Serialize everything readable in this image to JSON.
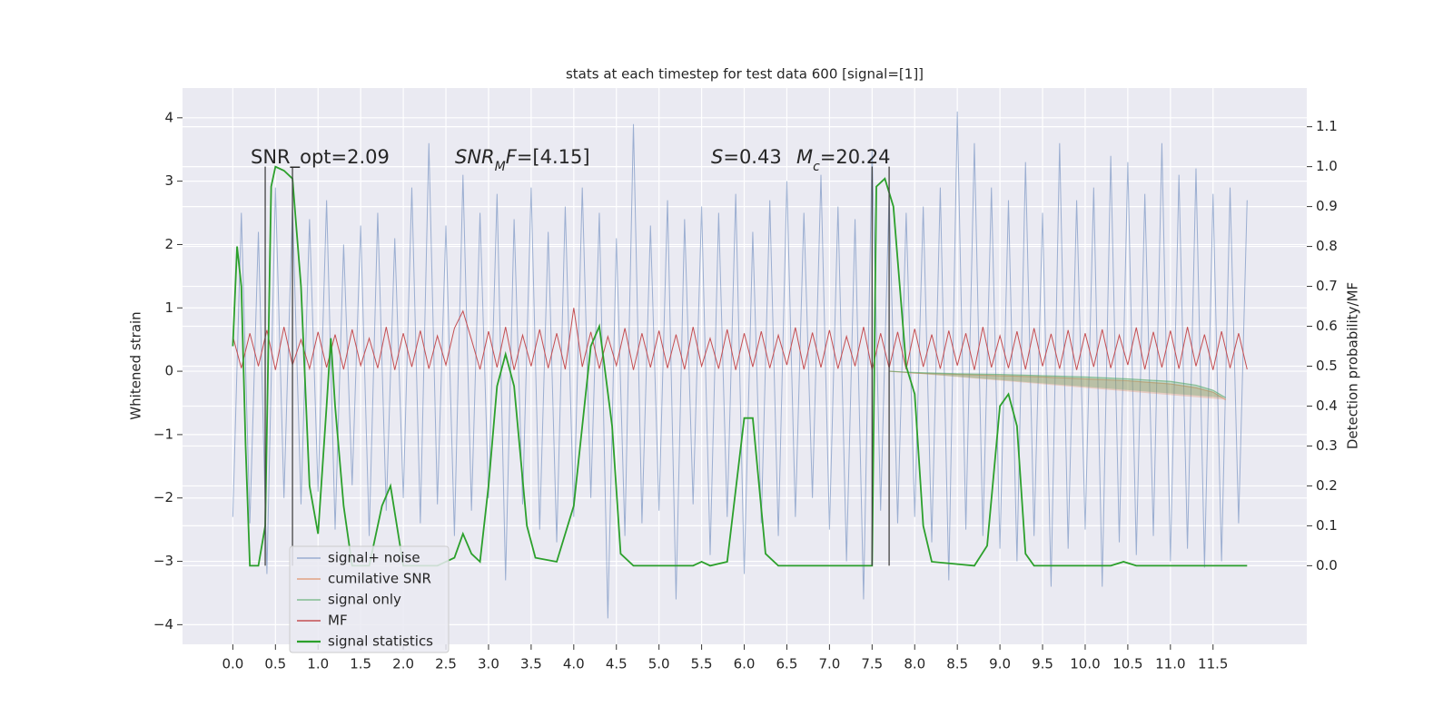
{
  "chart_data": {
    "type": "line",
    "title": "stats at each timestep for test data 600 [signal=[1]]",
    "ylabel": "Whitened strain",
    "y2label": "Detection probability/MF",
    "xlim": [
      -0.59,
      12.6
    ],
    "ylim": [
      -4.31,
      4.47
    ],
    "y2lim": [
      -0.197,
      1.197
    ],
    "xticks": [
      {
        "value": 0,
        "label": "0.0"
      },
      {
        "value": 0.5,
        "label": "0.5"
      },
      {
        "value": 1,
        "label": "1.0"
      },
      {
        "value": 1.5,
        "label": "1.5"
      },
      {
        "value": 2,
        "label": "2.0"
      },
      {
        "value": 2.5,
        "label": "2.5"
      },
      {
        "value": 3,
        "label": "3.0"
      },
      {
        "value": 3.5,
        "label": "3.5"
      },
      {
        "value": 4,
        "label": "4.0"
      },
      {
        "value": 4.5,
        "label": "4.5"
      },
      {
        "value": 5,
        "label": "5.0"
      },
      {
        "value": 5.5,
        "label": "5.5"
      },
      {
        "value": 6,
        "label": "6.0"
      },
      {
        "value": 6.5,
        "label": "6.5"
      },
      {
        "value": 7,
        "label": "7.0"
      },
      {
        "value": 7.5,
        "label": "7.5"
      },
      {
        "value": 8,
        "label": "8.0"
      },
      {
        "value": 8.5,
        "label": "8.5"
      },
      {
        "value": 9,
        "label": "9.0"
      },
      {
        "value": 9.5,
        "label": "9.5"
      },
      {
        "value": 10,
        "label": "10.0"
      },
      {
        "value": 10.5,
        "label": "10.5"
      },
      {
        "value": 11,
        "label": "11.0"
      },
      {
        "value": 11.5,
        "label": "11.5"
      }
    ],
    "yticks": [
      {
        "value": -4,
        "label": "−4"
      },
      {
        "value": -3,
        "label": "−3"
      },
      {
        "value": -2,
        "label": "−2"
      },
      {
        "value": -1,
        "label": "−1"
      },
      0,
      1,
      2,
      3,
      4
    ],
    "y2ticks": [
      {
        "value": 0,
        "label": "0.0"
      },
      {
        "value": 0.1,
        "label": "0.1"
      },
      {
        "value": 0.2,
        "label": "0.2"
      },
      {
        "value": 0.3,
        "label": "0.3"
      },
      {
        "value": 0.4,
        "label": "0.4"
      },
      {
        "value": 0.5,
        "label": "0.5"
      },
      {
        "value": 0.6,
        "label": "0.6"
      },
      {
        "value": 0.7,
        "label": "0.7"
      },
      {
        "value": 0.8,
        "label": "0.8"
      },
      {
        "value": 0.9,
        "label": "0.9"
      },
      {
        "value": 1,
        "label": "1.0"
      },
      {
        "value": 1.1,
        "label": "1.1"
      }
    ],
    "grid": true,
    "legend_loc": "lower left",
    "x": [
      0,
      0.1,
      0.2,
      0.3,
      0.4,
      0.5,
      0.6,
      0.7,
      0.8,
      0.9,
      1,
      1.1,
      1.2,
      1.3,
      1.4,
      1.5,
      1.6,
      1.7,
      1.8,
      1.9,
      2,
      2.1,
      2.2,
      2.3,
      2.4,
      2.5,
      2.6,
      2.7,
      2.8,
      2.9,
      3,
      3.1,
      3.2,
      3.3,
      3.4,
      3.5,
      3.6,
      3.7,
      3.8,
      3.9,
      4,
      4.1,
      4.2,
      4.3,
      4.4,
      4.5,
      4.6,
      4.7,
      4.8,
      4.9,
      5,
      5.1,
      5.2,
      5.3,
      5.4,
      5.5,
      5.6,
      5.7,
      5.8,
      5.9,
      6,
      6.1,
      6.2,
      6.3,
      6.4,
      6.5,
      6.6,
      6.7,
      6.8,
      6.9,
      7,
      7.1,
      7.2,
      7.3,
      7.4,
      7.5,
      7.6,
      7.7,
      7.8,
      7.9,
      8,
      8.1,
      8.2,
      8.3,
      8.4,
      8.5,
      8.6,
      8.7,
      8.8,
      8.9,
      9,
      9.1,
      9.2,
      9.3,
      9.4,
      9.5,
      9.6,
      9.7,
      9.8,
      9.9,
      10,
      10.1,
      10.2,
      10.3,
      10.4,
      10.5,
      10.6,
      10.7,
      10.8,
      10.9,
      11,
      11.1,
      11.2,
      11.3,
      11.4,
      11.5,
      11.6,
      11.7,
      11.8,
      11.9
    ],
    "series": [
      {
        "name": "signal+ noise",
        "color": "#4c72b0",
        "values": [
          -2.3,
          2.5,
          -2.4,
          2.2,
          -3.2,
          2.9,
          -2.0,
          2.6,
          -2.1,
          2.4,
          -1.9,
          2.7,
          -2.5,
          2.0,
          -1.8,
          2.3,
          -2.6,
          2.5,
          -2.2,
          2.1,
          -2.0,
          2.9,
          -2.4,
          3.6,
          -2.1,
          2.3,
          -2.6,
          3.1,
          -2.2,
          2.5,
          -2.0,
          2.8,
          -3.3,
          2.4,
          -2.1,
          2.9,
          -2.5,
          2.2,
          -2.7,
          2.6,
          -2.3,
          2.9,
          -2.0,
          2.5,
          -3.9,
          2.1,
          -2.6,
          3.9,
          -2.4,
          2.3,
          -2.2,
          2.7,
          -3.6,
          2.4,
          -2.1,
          2.6,
          -2.9,
          2.5,
          -2.3,
          2.8,
          -3.2,
          2.2,
          -2.4,
          2.7,
          -2.6,
          3.0,
          -2.3,
          2.5,
          -2.0,
          3.1,
          -2.5,
          2.6,
          -3.0,
          2.4,
          -3.6,
          3.5,
          -2.2,
          2.8,
          -2.4,
          2.5,
          -2.3,
          2.6,
          -2.7,
          2.9,
          -3.3,
          4.1,
          -2.5,
          3.6,
          -2.6,
          2.9,
          -2.8,
          2.7,
          -3.0,
          3.3,
          -2.6,
          2.5,
          -3.4,
          3.6,
          -2.8,
          2.7,
          -2.5,
          2.9,
          -3.4,
          3.4,
          -2.7,
          3.3,
          -2.9,
          2.8,
          -2.6,
          3.6,
          -3.0,
          3.1,
          -2.8,
          3.2,
          -3.1,
          2.8,
          -3.0,
          2.9,
          -2.4,
          2.7
        ]
      },
      {
        "name": "cumilative SNR",
        "color": "#dd8452",
        "x": [
          7.7,
          8.0,
          8.5,
          9.0,
          9.5,
          10.0,
          10.5,
          11.0,
          11.3,
          11.5,
          11.65
        ],
        "values": [
          0,
          -0.03,
          -0.05,
          -0.07,
          -0.09,
          -0.12,
          -0.15,
          -0.2,
          -0.26,
          -0.33,
          -0.45
        ]
      },
      {
        "name": "signal only",
        "color": "#55a868",
        "x": [
          7.7,
          8.0,
          8.5,
          9.0,
          9.5,
          10.0,
          10.5,
          11.0,
          11.3,
          11.5,
          11.65
        ],
        "values": [
          0,
          -0.02,
          -0.04,
          -0.05,
          -0.07,
          -0.09,
          -0.12,
          -0.16,
          -0.22,
          -0.3,
          -0.42
        ]
      },
      {
        "name": "MF",
        "color": "#c44e52",
        "values": [
          0.55,
          0.05,
          0.6,
          0.08,
          0.65,
          0.02,
          0.7,
          0.1,
          0.5,
          0.04,
          0.62,
          0.06,
          0.58,
          0.03,
          0.66,
          0.09,
          0.52,
          0.05,
          0.7,
          0.02,
          0.6,
          0.07,
          0.64,
          0.04,
          0.56,
          0.1,
          0.68,
          0.95,
          0.5,
          0.03,
          0.63,
          0.06,
          0.7,
          0.02,
          0.57,
          0.08,
          0.66,
          0.05,
          0.6,
          0.03,
          1.0,
          0.07,
          0.62,
          0.04,
          0.55,
          0.09,
          0.68,
          0.02,
          0.6,
          0.06,
          0.64,
          0.05,
          0.58,
          0.03,
          0.7,
          0.08,
          0.52,
          0.04,
          0.66,
          0.02,
          0.6,
          0.07,
          0.63,
          0.05,
          0.57,
          0.1,
          0.69,
          0.03,
          0.61,
          0.06,
          0.65,
          0.04,
          0.55,
          0.08,
          0.7,
          0.02,
          0.6,
          0.05,
          0.62,
          0.03,
          0.67,
          0.07,
          0.58,
          0.04,
          0.64,
          0.09,
          0.6,
          0.02,
          0.7,
          0.06,
          0.56,
          0.05,
          0.63,
          0.03,
          0.68,
          0.08,
          0.59,
          0.04,
          0.65,
          0.02,
          0.6,
          0.07,
          0.66,
          0.05,
          0.57,
          0.1,
          0.69,
          0.03,
          0.62,
          0.06,
          0.64,
          0.04,
          0.7,
          0.08,
          0.58,
          0.02,
          0.63,
          0.05,
          0.6,
          0.03
        ]
      },
      {
        "name": "signal statistics",
        "color": "#2ca02c",
        "axis": "y2",
        "x": [
          0,
          0.05,
          0.1,
          0.15,
          0.2,
          0.3,
          0.38,
          0.45,
          0.5,
          0.6,
          0.7,
          0.8,
          0.9,
          1.0,
          1.1,
          1.15,
          1.2,
          1.3,
          1.4,
          1.6,
          1.75,
          1.85,
          2.0,
          2.4,
          2.6,
          2.7,
          2.8,
          2.9,
          3.0,
          3.1,
          3.2,
          3.3,
          3.45,
          3.55,
          3.8,
          4.0,
          4.2,
          4.3,
          4.45,
          4.55,
          4.7,
          5.4,
          5.5,
          5.6,
          5.8,
          6.0,
          6.1,
          6.25,
          6.4,
          7.5,
          7.55,
          7.65,
          7.75,
          7.9,
          8.0,
          8.1,
          8.2,
          8.7,
          8.85,
          9.0,
          9.1,
          9.2,
          9.3,
          9.4,
          10.3,
          10.45,
          10.6,
          11.9
        ],
        "values": [
          0.55,
          0.8,
          0.7,
          0.3,
          0,
          0,
          0.1,
          0.95,
          1.0,
          0.99,
          0.97,
          0.7,
          0.2,
          0.08,
          0.4,
          0.57,
          0.4,
          0.15,
          0,
          0,
          0.15,
          0.2,
          0,
          0,
          0.02,
          0.08,
          0.03,
          0.01,
          0.2,
          0.45,
          0.53,
          0.45,
          0.1,
          0.02,
          0.01,
          0.15,
          0.55,
          0.6,
          0.35,
          0.03,
          0,
          0,
          0.01,
          0,
          0.01,
          0.37,
          0.37,
          0.03,
          0,
          0,
          0.95,
          0.97,
          0.9,
          0.5,
          0.43,
          0.1,
          0.01,
          0,
          0.05,
          0.4,
          0.43,
          0.35,
          0.03,
          0,
          0,
          0.01,
          0,
          0
        ]
      }
    ],
    "vlines": {
      "x": [
        0.38,
        0.7,
        7.5,
        7.7
      ],
      "ymin": 0,
      "ymax": 1,
      "axis": "y2",
      "color": "#444444"
    },
    "annotations": [
      [
        {
          "text": "SNR_opt=2.09"
        }
      ],
      [
        {
          "text": "SNR",
          "style": "italic"
        },
        {
          "text": "M",
          "style": "sub"
        },
        {
          "text": "F",
          "style": "italic"
        },
        {
          "text": "=[4.15]"
        }
      ],
      [
        {
          "text": "S",
          "style": "italic"
        },
        {
          "text": "=0.43"
        }
      ],
      [
        {
          "text": "M",
          "style": "italic"
        },
        {
          "text": "c",
          "style": "sub"
        },
        {
          "text": "=20.24"
        }
      ]
    ]
  }
}
